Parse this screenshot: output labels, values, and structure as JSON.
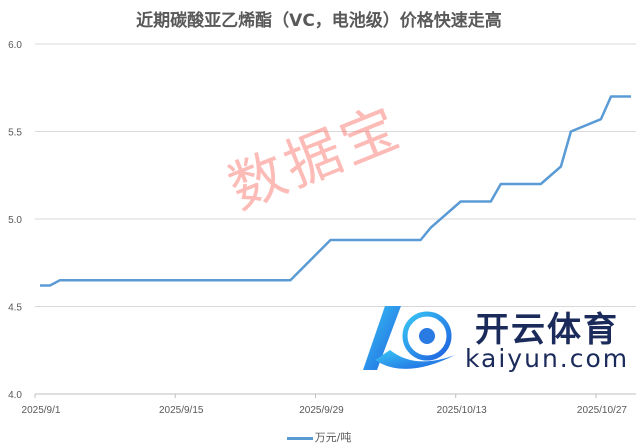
{
  "chart_data": {
    "type": "line",
    "title": "近期碳酸亚乙烯酯（VC，电池级）价格快速走高",
    "xlabel": "",
    "ylabel": "",
    "x_axis_type": "date",
    "x_range": [
      "2025/9/1",
      "2025/10/30"
    ],
    "x_ticks": [
      "2025/9/1",
      "2025/9/15",
      "2025/9/29",
      "2025/10/13",
      "2025/10/27"
    ],
    "ylim": [
      4.0,
      6.0
    ],
    "y_ticks": [
      "4.0",
      "4.5",
      "5.0",
      "5.5",
      "6.0"
    ],
    "grid": "horizontal",
    "legend_position": "bottom",
    "series": [
      {
        "name": "万元/吨",
        "color": "#5b9bd5",
        "x": [
          "2025/9/1",
          "2025/9/2",
          "2025/9/3",
          "2025/9/26",
          "2025/9/30",
          "2025/10/9",
          "2025/10/10",
          "2025/10/13",
          "2025/10/16",
          "2025/10/17",
          "2025/10/21",
          "2025/10/23",
          "2025/10/24",
          "2025/10/27",
          "2025/10/28",
          "2025/10/30"
        ],
        "values": [
          4.62,
          4.62,
          4.65,
          4.65,
          4.88,
          4.88,
          4.95,
          5.1,
          5.1,
          5.2,
          5.2,
          5.3,
          5.5,
          5.57,
          5.7,
          5.7
        ]
      }
    ]
  },
  "watermark": "数据宝",
  "logo": {
    "cn": "开云体育",
    "en": "kaiyun.com"
  }
}
